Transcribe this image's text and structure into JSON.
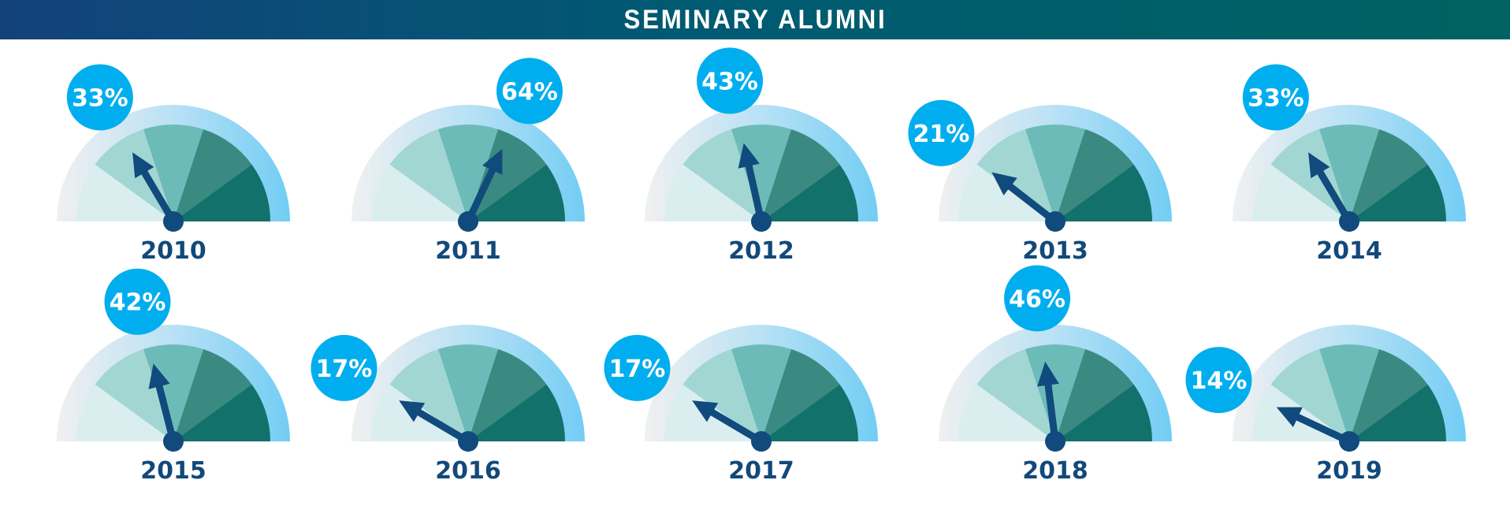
{
  "chart_data": {
    "type": "gauge",
    "title": "SEMINARY ALUMNI",
    "range": [
      0,
      100
    ],
    "unit": "%",
    "items": [
      {
        "year": "2010",
        "value": 33,
        "label": "33%"
      },
      {
        "year": "2011",
        "value": 64,
        "label": "64%"
      },
      {
        "year": "2012",
        "value": 43,
        "label": "43%"
      },
      {
        "year": "2013",
        "value": 21,
        "label": "21%"
      },
      {
        "year": "2014",
        "value": 33,
        "label": "33%"
      },
      {
        "year": "2015",
        "value": 42,
        "label": "42%"
      },
      {
        "year": "2016",
        "value": 17,
        "label": "17%"
      },
      {
        "year": "2017",
        "value": 17,
        "label": "17%"
      },
      {
        "year": "2018",
        "value": 46,
        "label": "46%"
      },
      {
        "year": "2019",
        "value": 14,
        "label": "14%"
      }
    ]
  },
  "colors": {
    "segments": [
      "#dbeeef",
      "#a1d6d3",
      "#6dbbb8",
      "#3b8a82",
      "#13716b"
    ],
    "ring_start": "#f0f0f0",
    "ring_end": "#72cdf4",
    "needle": "#114a7c",
    "bubble": "#00aeef",
    "year_text": "#12497a"
  }
}
